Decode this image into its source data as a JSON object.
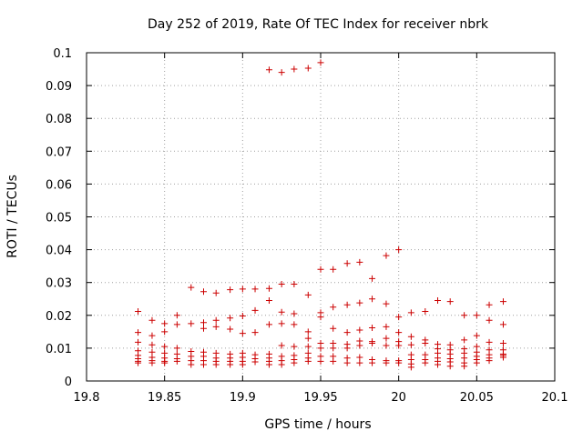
{
  "chart_data": {
    "type": "scatter",
    "title": "Day 252 of 2019, Rate Of TEC Index for receiver nbrk",
    "xlabel": "GPS time / hours",
    "ylabel": "ROTI / TECUs",
    "xlim": [
      19.8,
      20.1
    ],
    "ylim": [
      0,
      0.1
    ],
    "grid": true,
    "marker": "+",
    "color": "#cc0000",
    "x_ticks": [
      "19.8",
      "19.85",
      "19.9",
      "19.95",
      "20",
      "20.05",
      "20.1"
    ],
    "x_tick_values": [
      19.8,
      19.85,
      19.9,
      19.95,
      20.0,
      20.05,
      20.1
    ],
    "y_ticks": [
      "0",
      "0.01",
      "0.02",
      "0.03",
      "0.04",
      "0.05",
      "0.06",
      "0.07",
      "0.08",
      "0.09",
      "0.1"
    ],
    "y_tick_values": [
      0,
      0.01,
      0.02,
      0.03,
      0.04,
      0.05,
      0.06,
      0.07,
      0.08,
      0.09,
      0.1
    ],
    "series": [
      {
        "name": "ROTI",
        "points": [
          [
            19.833,
            0.0212
          ],
          [
            19.833,
            0.0148
          ],
          [
            19.833,
            0.0118
          ],
          [
            19.833,
            0.0092
          ],
          [
            19.833,
            0.0078
          ],
          [
            19.833,
            0.0068
          ],
          [
            19.833,
            0.006
          ],
          [
            19.833,
            0.0055
          ],
          [
            19.842,
            0.0185
          ],
          [
            19.842,
            0.0138
          ],
          [
            19.842,
            0.011
          ],
          [
            19.842,
            0.0088
          ],
          [
            19.842,
            0.0072
          ],
          [
            19.842,
            0.0062
          ],
          [
            19.842,
            0.0055
          ],
          [
            19.85,
            0.0175
          ],
          [
            19.85,
            0.015
          ],
          [
            19.85,
            0.0105
          ],
          [
            19.85,
            0.0085
          ],
          [
            19.85,
            0.007
          ],
          [
            19.85,
            0.006
          ],
          [
            19.85,
            0.0055
          ],
          [
            19.858,
            0.02
          ],
          [
            19.858,
            0.0172
          ],
          [
            19.858,
            0.01
          ],
          [
            19.858,
            0.0082
          ],
          [
            19.858,
            0.0068
          ],
          [
            19.858,
            0.006
          ],
          [
            19.867,
            0.0285
          ],
          [
            19.867,
            0.0175
          ],
          [
            19.867,
            0.009
          ],
          [
            19.867,
            0.0075
          ],
          [
            19.867,
            0.0062
          ],
          [
            19.867,
            0.005
          ],
          [
            19.875,
            0.0272
          ],
          [
            19.875,
            0.0178
          ],
          [
            19.875,
            0.016
          ],
          [
            19.875,
            0.0088
          ],
          [
            19.875,
            0.0075
          ],
          [
            19.875,
            0.0062
          ],
          [
            19.875,
            0.005
          ],
          [
            19.883,
            0.0268
          ],
          [
            19.883,
            0.0185
          ],
          [
            19.883,
            0.0165
          ],
          [
            19.883,
            0.0085
          ],
          [
            19.883,
            0.007
          ],
          [
            19.883,
            0.006
          ],
          [
            19.883,
            0.005
          ],
          [
            19.892,
            0.0278
          ],
          [
            19.892,
            0.0192
          ],
          [
            19.892,
            0.0158
          ],
          [
            19.892,
            0.0082
          ],
          [
            19.892,
            0.007
          ],
          [
            19.892,
            0.006
          ],
          [
            19.892,
            0.005
          ],
          [
            19.9,
            0.028
          ],
          [
            19.9,
            0.0198
          ],
          [
            19.9,
            0.0145
          ],
          [
            19.9,
            0.0085
          ],
          [
            19.9,
            0.0072
          ],
          [
            19.9,
            0.006
          ],
          [
            19.9,
            0.005
          ],
          [
            19.908,
            0.028
          ],
          [
            19.908,
            0.0215
          ],
          [
            19.908,
            0.0148
          ],
          [
            19.908,
            0.008
          ],
          [
            19.908,
            0.0068
          ],
          [
            19.908,
            0.0058
          ],
          [
            19.917,
            0.0948
          ],
          [
            19.917,
            0.0282
          ],
          [
            19.917,
            0.0245
          ],
          [
            19.917,
            0.0172
          ],
          [
            19.917,
            0.0082
          ],
          [
            19.917,
            0.007
          ],
          [
            19.917,
            0.006
          ],
          [
            19.917,
            0.005
          ],
          [
            19.925,
            0.094
          ],
          [
            19.925,
            0.0295
          ],
          [
            19.925,
            0.021
          ],
          [
            19.925,
            0.0175
          ],
          [
            19.925,
            0.0108
          ],
          [
            19.925,
            0.0075
          ],
          [
            19.925,
            0.0062
          ],
          [
            19.925,
            0.005
          ],
          [
            19.933,
            0.095
          ],
          [
            19.933,
            0.0295
          ],
          [
            19.933,
            0.0205
          ],
          [
            19.933,
            0.0172
          ],
          [
            19.933,
            0.0105
          ],
          [
            19.933,
            0.0078
          ],
          [
            19.933,
            0.0065
          ],
          [
            19.933,
            0.0055
          ],
          [
            19.942,
            0.0953
          ],
          [
            19.942,
            0.0262
          ],
          [
            19.942,
            0.015
          ],
          [
            19.942,
            0.013
          ],
          [
            19.942,
            0.0105
          ],
          [
            19.942,
            0.0085
          ],
          [
            19.942,
            0.007
          ],
          [
            19.942,
            0.006
          ],
          [
            19.95,
            0.097
          ],
          [
            19.95,
            0.034
          ],
          [
            19.95,
            0.0208
          ],
          [
            19.95,
            0.0195
          ],
          [
            19.95,
            0.0115
          ],
          [
            19.95,
            0.01
          ],
          [
            19.95,
            0.0075
          ],
          [
            19.95,
            0.006
          ],
          [
            19.958,
            0.034
          ],
          [
            19.958,
            0.0225
          ],
          [
            19.958,
            0.016
          ],
          [
            19.958,
            0.0115
          ],
          [
            19.958,
            0.01
          ],
          [
            19.958,
            0.0075
          ],
          [
            19.958,
            0.006
          ],
          [
            19.967,
            0.0358
          ],
          [
            19.967,
            0.0232
          ],
          [
            19.967,
            0.0148
          ],
          [
            19.967,
            0.0112
          ],
          [
            19.967,
            0.01
          ],
          [
            19.967,
            0.007
          ],
          [
            19.967,
            0.0055
          ],
          [
            19.975,
            0.0362
          ],
          [
            19.975,
            0.0238
          ],
          [
            19.975,
            0.0155
          ],
          [
            19.975,
            0.0122
          ],
          [
            19.975,
            0.0108
          ],
          [
            19.975,
            0.0072
          ],
          [
            19.975,
            0.0055
          ],
          [
            19.983,
            0.0312
          ],
          [
            19.983,
            0.025
          ],
          [
            19.983,
            0.0162
          ],
          [
            19.983,
            0.012
          ],
          [
            19.983,
            0.0115
          ],
          [
            19.983,
            0.0065
          ],
          [
            19.983,
            0.0055
          ],
          [
            19.992,
            0.0382
          ],
          [
            19.992,
            0.0235
          ],
          [
            19.992,
            0.0165
          ],
          [
            19.992,
            0.013
          ],
          [
            19.992,
            0.0108
          ],
          [
            19.992,
            0.0062
          ],
          [
            19.992,
            0.0055
          ],
          [
            20.0,
            0.04
          ],
          [
            20.0,
            0.0195
          ],
          [
            20.0,
            0.0148
          ],
          [
            20.0,
            0.012
          ],
          [
            20.0,
            0.0108
          ],
          [
            20.0,
            0.0062
          ],
          [
            20.0,
            0.0055
          ],
          [
            20.008,
            0.0208
          ],
          [
            20.008,
            0.0135
          ],
          [
            20.008,
            0.011
          ],
          [
            20.008,
            0.008
          ],
          [
            20.008,
            0.0065
          ],
          [
            20.008,
            0.0052
          ],
          [
            20.008,
            0.0042
          ],
          [
            20.017,
            0.0212
          ],
          [
            20.017,
            0.0125
          ],
          [
            20.017,
            0.0115
          ],
          [
            20.017,
            0.008
          ],
          [
            20.017,
            0.0065
          ],
          [
            20.017,
            0.0055
          ],
          [
            20.025,
            0.0245
          ],
          [
            20.025,
            0.0112
          ],
          [
            20.025,
            0.0098
          ],
          [
            20.025,
            0.0085
          ],
          [
            20.025,
            0.007
          ],
          [
            20.025,
            0.006
          ],
          [
            20.025,
            0.005
          ],
          [
            20.033,
            0.0242
          ],
          [
            20.033,
            0.011
          ],
          [
            20.033,
            0.0095
          ],
          [
            20.033,
            0.0082
          ],
          [
            20.033,
            0.0068
          ],
          [
            20.033,
            0.0058
          ],
          [
            20.033,
            0.0045
          ],
          [
            20.042,
            0.02
          ],
          [
            20.042,
            0.0125
          ],
          [
            20.042,
            0.0098
          ],
          [
            20.042,
            0.0085
          ],
          [
            20.042,
            0.007
          ],
          [
            20.042,
            0.0055
          ],
          [
            20.042,
            0.0045
          ],
          [
            20.05,
            0.02
          ],
          [
            20.05,
            0.0138
          ],
          [
            20.05,
            0.0105
          ],
          [
            20.05,
            0.0088
          ],
          [
            20.05,
            0.0075
          ],
          [
            20.05,
            0.0065
          ],
          [
            20.05,
            0.0055
          ],
          [
            20.058,
            0.0232
          ],
          [
            20.058,
            0.0185
          ],
          [
            20.058,
            0.0118
          ],
          [
            20.058,
            0.0095
          ],
          [
            20.058,
            0.008
          ],
          [
            20.058,
            0.007
          ],
          [
            20.058,
            0.0062
          ],
          [
            20.067,
            0.0242
          ],
          [
            20.067,
            0.0172
          ],
          [
            20.067,
            0.0115
          ],
          [
            20.067,
            0.0095
          ],
          [
            20.067,
            0.0082
          ],
          [
            20.067,
            0.0078
          ],
          [
            20.067,
            0.0072
          ]
        ]
      }
    ]
  }
}
